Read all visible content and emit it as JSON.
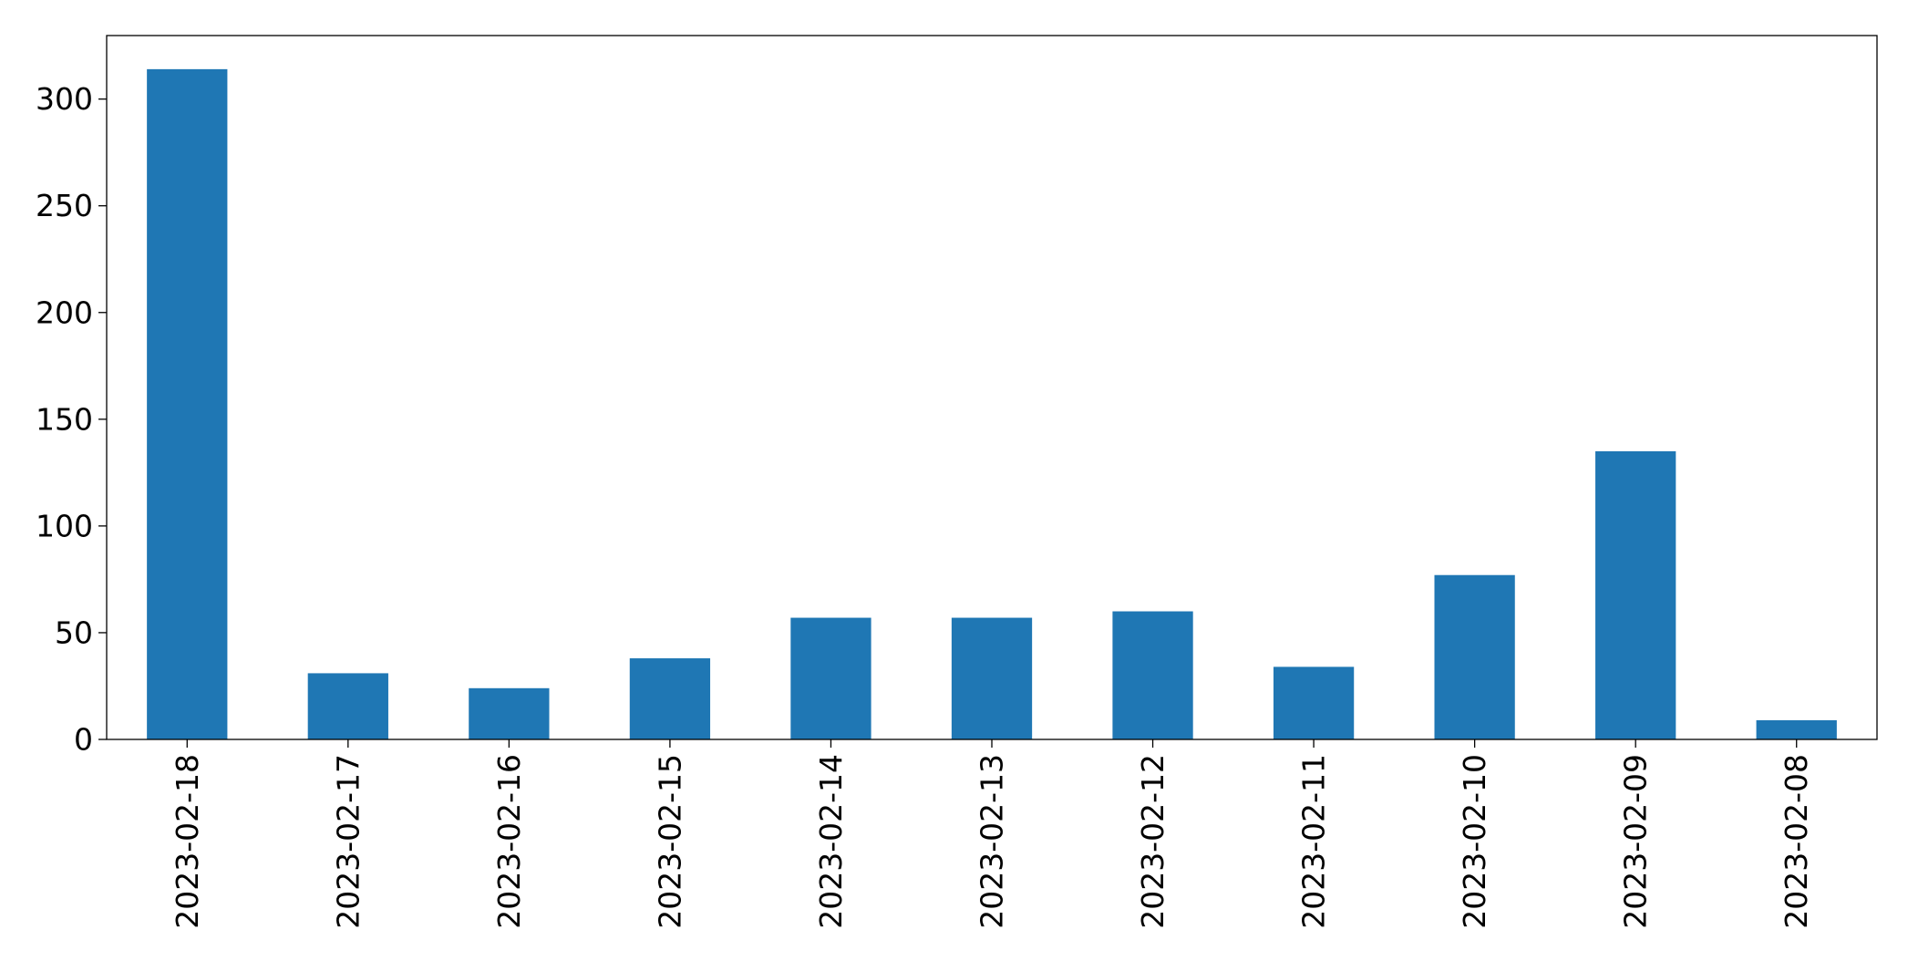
{
  "chart_data": {
    "type": "bar",
    "title": "",
    "xlabel": "",
    "ylabel": "",
    "categories": [
      "2023-02-18",
      "2023-02-17",
      "2023-02-16",
      "2023-02-15",
      "2023-02-14",
      "2023-02-13",
      "2023-02-12",
      "2023-02-11",
      "2023-02-10",
      "2023-02-09",
      "2023-02-08"
    ],
    "values": [
      314,
      31,
      24,
      38,
      57,
      57,
      60,
      34,
      77,
      135,
      9
    ],
    "ylim": [
      0,
      329.75
    ],
    "yticks": [
      0,
      50,
      100,
      150,
      200,
      250,
      300
    ],
    "grid": false,
    "legend": "none",
    "bar_color": "#1f77b4"
  }
}
